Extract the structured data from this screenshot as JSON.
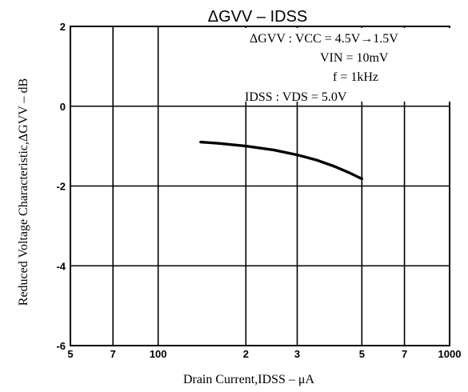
{
  "chart_data": {
    "type": "line",
    "title": "ΔGVV  –  IDSS",
    "xlabel": "Drain Current,IDSS – μA",
    "ylabel": "Reduced Voltage Characteristic,ΔGVV – dB",
    "xscale": "log",
    "xlim": [
      50,
      1000
    ],
    "ylim": [
      -6,
      2
    ],
    "x_tick_labels": [
      "5",
      "7",
      "100",
      "2",
      "3",
      "5",
      "7",
      "1000"
    ],
    "y_tick_labels": [
      "2",
      "0",
      "-2",
      "-4",
      "-6"
    ],
    "grid": true,
    "conditions": [
      "ΔGVV : VCC = 4.5V→1.5V",
      "VIN = 10mV",
      "f = 1kHz",
      "IDSS : VDS = 5.0V"
    ],
    "series": [
      {
        "x": [
          140,
          160,
          200,
          250,
          300,
          350,
          400,
          450,
          500
        ],
        "y": [
          -0.9,
          -0.93,
          -1.0,
          -1.1,
          -1.22,
          -1.35,
          -1.5,
          -1.66,
          -1.82
        ]
      }
    ]
  }
}
